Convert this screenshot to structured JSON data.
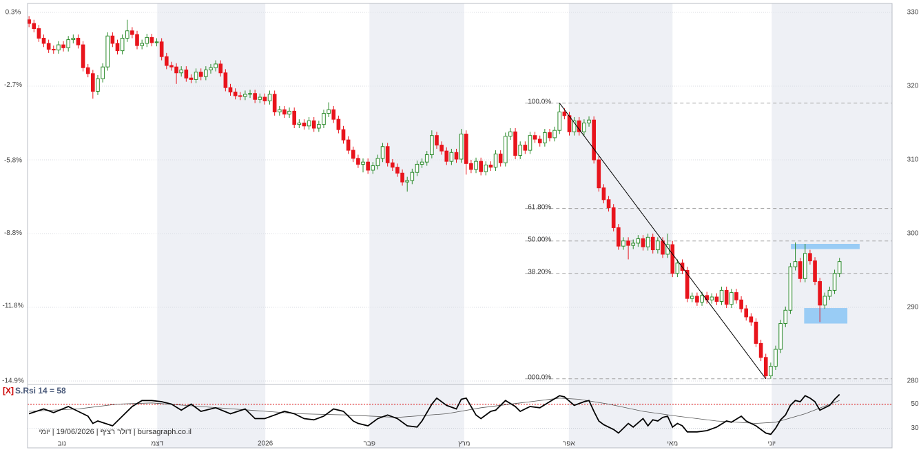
{
  "chart_data": {
    "type": "candlestick",
    "xlim": [
      -0.3,
      175.7
    ],
    "xticks": [
      {
        "value": 6.7,
        "label": "נוב"
      },
      {
        "value": 26.1,
        "label": "דצמ"
      },
      {
        "value": 48.1,
        "label": "2026"
      },
      {
        "value": 69.3,
        "label": "פבר"
      },
      {
        "value": 88.6,
        "label": "מרץ"
      },
      {
        "value": 109.9,
        "label": "אפר"
      },
      {
        "value": 131.0,
        "label": "מאי"
      },
      {
        "value": 151.2,
        "label": "יוני"
      }
    ],
    "ylim": [
      280,
      330
    ],
    "yticks": [
      280,
      290,
      300,
      310,
      320,
      330
    ],
    "y2lim": [
      -14.9,
      0.3
    ],
    "y2ticks": [
      {
        "value": 0.3,
        "label": "0.3%"
      },
      {
        "value": -2.7,
        "label": "-2.7%"
      },
      {
        "value": -5.8,
        "label": "-5.8%"
      },
      {
        "value": -8.8,
        "label": "-8.8%"
      },
      {
        "value": -11.8,
        "label": "-11.8%"
      },
      {
        "value": -14.9,
        "label": "-14.9%"
      }
    ],
    "grid": true,
    "up_color": "#2a8a2a",
    "down_color": "#e8141c",
    "open": [
      329.0,
      328.5,
      327.8,
      326.5,
      325.8,
      325.0,
      324.9,
      325.6,
      325.2,
      326.3,
      326.5,
      325.6,
      322.5,
      321.7,
      319.3,
      321.0,
      322.6,
      326.8,
      325.8,
      324.8,
      326.5,
      327.5,
      327.0,
      325.5,
      325.8,
      326.6,
      325.9,
      326.0,
      324.0,
      322.8,
      322.6,
      321.8,
      322.2,
      321.1,
      320.9,
      321.9,
      321.3,
      322.2,
      322.5,
      323.0,
      321.8,
      319.8,
      319.2,
      318.7,
      318.6,
      318.9,
      319.0,
      318.2,
      318.5,
      318.0,
      318.9,
      316.5,
      316.8,
      316.2,
      316.6,
      314.8,
      315.0,
      314.6,
      315.3,
      314.3,
      314.8,
      316.3,
      316.8,
      315.5,
      314.1,
      312.7,
      311.3,
      310.2,
      309.4,
      309.7,
      308.6,
      309.2,
      310.2,
      311.8,
      309.6,
      309.0,
      308.2,
      307.0,
      307.2,
      308.3,
      309.4,
      309.7,
      310.7,
      313.3,
      312.0,
      311.2,
      309.8,
      311.0,
      310.1,
      313.5,
      309.5,
      308.7,
      309.8,
      308.4,
      309.3,
      309.0,
      310.8,
      309.6,
      313.2,
      313.8,
      310.6,
      312.0,
      311.3,
      313.3,
      312.8,
      312.3,
      313.7,
      313.0,
      314.0,
      316.5,
      316.0,
      313.8,
      315.3,
      313.8,
      315.0,
      315.4,
      310.0,
      306.2,
      304.6,
      303.5,
      300.8,
      298.3,
      299.0,
      298.4,
      298.7,
      299.3,
      298.2,
      299.5,
      297.8,
      299.0,
      297.2,
      298.5,
      294.6,
      296.0,
      295.0,
      291.2,
      291.5,
      290.7,
      291.6,
      291.0,
      291.4,
      290.8,
      292.3,
      290.4,
      292.0,
      291.0,
      289.8,
      288.7,
      288.0,
      285.1,
      283.2,
      280.7,
      282.0,
      284.3,
      287.8,
      289.6,
      295.5,
      296.2,
      293.9,
      297.3,
      296.3,
      293.5,
      290.3,
      291.5,
      292.3,
      294.6
    ],
    "high": [
      329.5,
      329.0,
      328.3,
      327.0,
      326.3,
      325.5,
      326.1,
      326.1,
      326.8,
      327.0,
      327.0,
      326.1,
      323.0,
      322.2,
      321.5,
      323.1,
      327.3,
      327.3,
      326.3,
      327.0,
      329.0,
      328.0,
      327.5,
      326.3,
      327.1,
      327.1,
      326.5,
      326.5,
      324.5,
      323.3,
      323.1,
      322.7,
      322.7,
      321.6,
      322.4,
      322.4,
      322.7,
      323.0,
      323.5,
      323.5,
      322.3,
      320.3,
      319.7,
      319.2,
      319.4,
      319.5,
      319.5,
      319.0,
      319.0,
      319.4,
      319.4,
      317.3,
      317.3,
      317.1,
      317.1,
      315.5,
      315.5,
      315.8,
      315.8,
      315.3,
      316.8,
      317.8,
      317.3,
      316.0,
      314.6,
      313.2,
      311.8,
      310.7,
      310.2,
      310.2,
      309.7,
      310.7,
      312.3,
      312.3,
      310.1,
      309.5,
      308.7,
      307.7,
      308.8,
      309.9,
      310.2,
      311.2,
      314.0,
      313.8,
      312.5,
      311.7,
      311.5,
      311.5,
      314.2,
      314.0,
      310.0,
      310.3,
      310.3,
      309.8,
      309.8,
      311.3,
      311.3,
      313.7,
      314.3,
      314.3,
      312.5,
      312.5,
      313.8,
      313.8,
      313.3,
      314.2,
      314.2,
      314.5,
      317.7,
      317.0,
      316.5,
      315.8,
      315.8,
      315.5,
      315.9,
      315.9,
      310.5,
      306.7,
      305.1,
      304.0,
      301.3,
      299.5,
      299.5,
      299.2,
      299.8,
      299.8,
      300.0,
      300.0,
      299.5,
      299.5,
      300.0,
      299.0,
      296.5,
      296.5,
      295.5,
      292.0,
      292.0,
      292.1,
      292.1,
      291.9,
      291.9,
      292.8,
      292.8,
      292.5,
      292.5,
      291.5,
      290.3,
      289.2,
      288.5,
      285.6,
      283.7,
      282.5,
      284.8,
      288.3,
      290.1,
      296.0,
      298.8,
      296.7,
      298.6,
      297.8,
      296.8,
      294.0,
      292.0,
      292.8,
      295.1,
      296.7
    ],
    "low": [
      328.0,
      327.3,
      326.0,
      325.3,
      324.5,
      324.4,
      324.4,
      324.7,
      324.7,
      325.8,
      325.1,
      322.0,
      321.2,
      318.3,
      318.8,
      320.5,
      322.1,
      325.3,
      324.3,
      324.3,
      326.0,
      326.5,
      325.0,
      325.0,
      325.3,
      325.4,
      325.4,
      323.5,
      322.3,
      322.1,
      320.3,
      321.3,
      320.6,
      320.4,
      320.4,
      320.8,
      320.8,
      321.7,
      322.0,
      321.3,
      319.3,
      318.7,
      318.2,
      318.1,
      318.1,
      318.4,
      317.7,
      317.7,
      317.5,
      317.5,
      316.0,
      316.0,
      315.7,
      315.7,
      314.3,
      314.3,
      314.1,
      314.1,
      313.8,
      313.8,
      314.3,
      315.8,
      315.0,
      313.6,
      312.2,
      310.8,
      309.7,
      308.9,
      308.3,
      308.1,
      308.1,
      308.7,
      309.7,
      309.1,
      308.5,
      307.7,
      306.5,
      305.7,
      306.7,
      307.8,
      308.9,
      309.2,
      310.2,
      311.5,
      310.7,
      309.3,
      309.3,
      309.6,
      309.6,
      308.0,
      308.2,
      308.2,
      307.9,
      307.9,
      308.5,
      308.5,
      309.1,
      309.1,
      312.7,
      310.1,
      310.1,
      310.8,
      310.8,
      312.3,
      311.8,
      311.8,
      312.5,
      312.5,
      313.5,
      315.5,
      313.3,
      313.3,
      313.3,
      313.3,
      314.5,
      309.5,
      305.7,
      304.1,
      303.0,
      300.3,
      297.8,
      297.8,
      296.5,
      297.9,
      298.2,
      297.7,
      297.7,
      297.3,
      297.3,
      296.7,
      296.7,
      294.1,
      294.1,
      294.5,
      290.7,
      290.7,
      290.2,
      290.2,
      290.5,
      290.5,
      290.3,
      290.3,
      289.9,
      289.9,
      290.5,
      289.3,
      288.2,
      287.5,
      284.6,
      282.7,
      280.3,
      280.3,
      281.5,
      283.8,
      287.3,
      289.1,
      295.0,
      293.4,
      293.4,
      295.8,
      293.0,
      288.0,
      289.8,
      291.0,
      291.8,
      294.1
    ],
    "close": [
      328.5,
      327.8,
      326.5,
      325.8,
      325.0,
      324.9,
      325.6,
      325.2,
      326.3,
      326.5,
      325.6,
      322.5,
      321.7,
      319.3,
      321.0,
      322.6,
      326.8,
      325.8,
      324.8,
      326.5,
      327.5,
      327.0,
      325.5,
      325.8,
      326.6,
      325.9,
      326.0,
      324.0,
      322.8,
      322.6,
      321.8,
      322.2,
      321.1,
      320.9,
      321.9,
      321.3,
      322.2,
      322.5,
      323.0,
      321.8,
      319.8,
      319.2,
      318.7,
      318.6,
      318.9,
      319.0,
      318.2,
      318.5,
      318.0,
      318.9,
      316.5,
      316.8,
      316.2,
      316.6,
      314.8,
      315.0,
      314.6,
      315.3,
      314.3,
      314.8,
      316.3,
      316.8,
      315.5,
      314.1,
      312.7,
      311.3,
      310.2,
      309.4,
      309.7,
      308.6,
      309.2,
      310.2,
      311.8,
      309.6,
      309.0,
      308.2,
      307.0,
      307.2,
      308.3,
      309.4,
      309.7,
      310.7,
      313.3,
      312.0,
      311.2,
      309.8,
      311.0,
      310.1,
      313.5,
      309.5,
      308.7,
      309.8,
      308.4,
      309.3,
      309.0,
      310.8,
      309.6,
      313.2,
      313.8,
      310.6,
      312.0,
      311.3,
      313.3,
      312.8,
      312.3,
      313.7,
      313.0,
      314.0,
      316.5,
      316.0,
      313.8,
      315.3,
      313.8,
      315.0,
      315.4,
      310.0,
      306.2,
      304.6,
      303.5,
      300.8,
      298.3,
      299.0,
      298.4,
      298.7,
      299.3,
      298.2,
      299.5,
      297.8,
      299.0,
      297.2,
      298.5,
      294.6,
      296.0,
      295.0,
      291.2,
      291.5,
      290.7,
      291.6,
      291.0,
      291.4,
      290.8,
      292.3,
      290.4,
      292.0,
      291.0,
      289.8,
      288.7,
      288.0,
      285.1,
      283.2,
      280.7,
      282.0,
      284.3,
      287.8,
      289.6,
      295.5,
      296.2,
      293.9,
      297.3,
      296.3,
      293.5,
      290.3,
      291.5,
      292.3,
      294.6,
      296.2
    ],
    "fibonacci": [
      {
        "price": 317.7,
        "label": "100.0%"
      },
      {
        "price": 303.4,
        "label": "61.80%"
      },
      {
        "price": 299.0,
        "label": "50.00%"
      },
      {
        "price": 294.6,
        "label": "38.20%"
      },
      {
        "price": 280.3,
        "label": "000.0%"
      }
    ],
    "trendline": {
      "x": [
        108,
        150
      ],
      "y": [
        317.7,
        280.3
      ]
    },
    "zones": [
      {
        "x": [
          155.1,
          169.1
        ],
        "y": [
          297.9,
          298.6
        ],
        "color": "#99ccf5"
      },
      {
        "x": [
          157.8,
          166.6
        ],
        "y": [
          287.8,
          289.9
        ],
        "color": "#99ccf5"
      }
    ],
    "rsi": {
      "prefix": "[X]",
      "title": "S.Rsi 14 = 58",
      "ylim": [
        24,
        64
      ],
      "yticks": [
        30,
        50
      ],
      "reference": 50,
      "color": "#000000",
      "x": [
        0,
        3,
        5,
        8,
        10,
        12,
        13,
        14,
        17,
        19,
        21,
        23,
        25,
        27,
        29,
        31,
        33,
        35,
        38,
        41,
        44,
        46,
        48,
        50,
        52,
        54,
        56,
        58,
        60,
        62,
        64,
        66,
        67,
        69,
        71,
        73,
        75,
        77,
        79,
        80,
        82,
        83,
        85,
        87,
        88,
        89,
        90,
        91,
        92,
        94,
        95,
        97,
        99,
        100,
        102,
        104,
        106,
        108,
        109,
        111,
        113,
        114,
        115,
        116,
        117,
        119,
        120,
        121,
        122,
        123,
        125,
        126,
        127,
        128,
        129,
        130,
        131,
        132,
        133,
        134,
        136,
        138,
        140,
        142,
        143,
        145,
        146,
        147,
        148,
        149,
        150,
        151,
        152,
        153,
        154,
        155,
        156,
        157,
        158,
        159,
        160,
        161,
        162,
        163,
        164,
        165
      ],
      "values": [
        42,
        46,
        43,
        48,
        44,
        40,
        34,
        36,
        32,
        40,
        48,
        53,
        53,
        52,
        50,
        45,
        50,
        44,
        47,
        42,
        46,
        38,
        38,
        41,
        44,
        42,
        38,
        37,
        40,
        46,
        44,
        36,
        34,
        32,
        38,
        41,
        38,
        32,
        31,
        36,
        50,
        55,
        49,
        46,
        54,
        55,
        48,
        41,
        38,
        44,
        45,
        53,
        48,
        44,
        48,
        47,
        52,
        57,
        56,
        49,
        52,
        53,
        44,
        36,
        33,
        29,
        26,
        30,
        34,
        31,
        38,
        32,
        37,
        36,
        39,
        40,
        31,
        34,
        32,
        27,
        27,
        28,
        31,
        36,
        35,
        40,
        36,
        34,
        32,
        29,
        26,
        25,
        30,
        37,
        41,
        49,
        53,
        52,
        57,
        55,
        52,
        45,
        47,
        49,
        54,
        58
      ],
      "ma": {
        "color": "#555555",
        "x": [
          0,
          10,
          18,
          25,
          35,
          45,
          55,
          65,
          75,
          85,
          92,
          100,
          108,
          112,
          118,
          125,
          132,
          140,
          148,
          152,
          158,
          165
        ],
        "values": [
          44,
          46,
          50,
          51,
          48,
          45,
          42,
          41,
          39,
          42,
          47,
          51,
          55,
          54,
          50,
          44,
          40,
          36,
          34,
          35,
          42,
          53
        ]
      }
    },
    "footer": "bursagraph.co.il | דולר רציף | 19/06/2026 | יומי"
  }
}
